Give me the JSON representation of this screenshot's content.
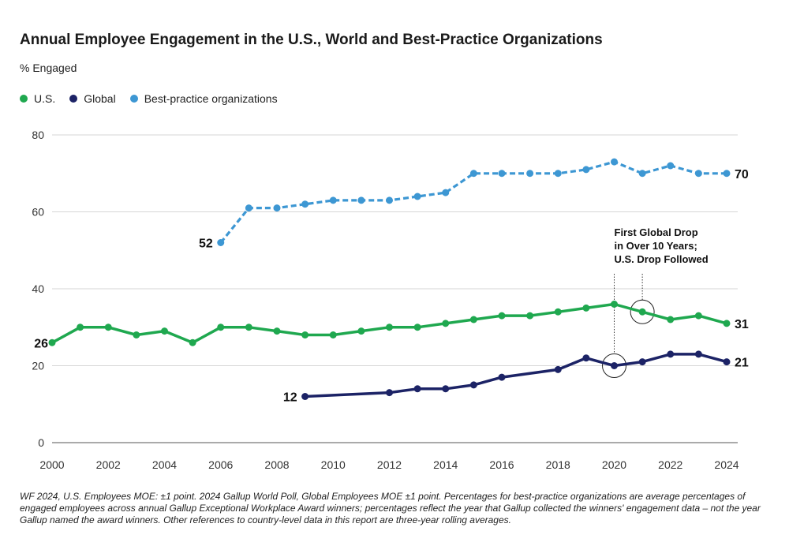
{
  "chart_data": {
    "type": "line",
    "title": "Annual Employee Engagement in the U.S., World and Best-Practice Organizations",
    "ylabel": "% Engaged",
    "xlabel": "",
    "ylim": [
      0,
      80
    ],
    "xlim": [
      2000,
      2024
    ],
    "y_ticks": [
      0,
      20,
      40,
      60,
      80
    ],
    "x_ticks": [
      2000,
      2002,
      2004,
      2006,
      2008,
      2010,
      2012,
      2014,
      2016,
      2018,
      2020,
      2022,
      2024
    ],
    "grid": "horizontal",
    "legend_position": "top-left",
    "series": [
      {
        "name": "U.S.",
        "color": "#1fa84f",
        "style": "solid",
        "x": [
          2000,
          2001,
          2002,
          2003,
          2004,
          2005,
          2006,
          2007,
          2008,
          2009,
          2010,
          2011,
          2012,
          2013,
          2014,
          2015,
          2016,
          2017,
          2018,
          2019,
          2020,
          2021,
          2022,
          2023,
          2024
        ],
        "values": [
          26,
          30,
          30,
          28,
          29,
          26,
          30,
          30,
          29,
          28,
          28,
          29,
          30,
          30,
          31,
          32,
          33,
          33,
          34,
          35,
          36,
          34,
          32,
          33,
          31
        ],
        "start_label": "26",
        "end_label": "31"
      },
      {
        "name": "Global",
        "color": "#1c2366",
        "style": "solid",
        "x": [
          2009,
          2012,
          2013,
          2014,
          2015,
          2016,
          2018,
          2019,
          2020,
          2021,
          2022,
          2023,
          2024
        ],
        "values": [
          12,
          13,
          14,
          14,
          15,
          17,
          19,
          22,
          20,
          21,
          23,
          23,
          21
        ],
        "start_label": "12",
        "end_label": "21"
      },
      {
        "name": "Best-practice organizations",
        "color": "#3d97d3",
        "style": "dashed",
        "x": [
          2006,
          2007,
          2008,
          2009,
          2010,
          2011,
          2012,
          2013,
          2014,
          2015,
          2016,
          2017,
          2018,
          2019,
          2020,
          2021,
          2022,
          2023,
          2024
        ],
        "values": [
          52,
          61,
          61,
          62,
          63,
          63,
          63,
          64,
          65,
          70,
          70,
          70,
          70,
          71,
          73,
          70,
          72,
          70,
          70
        ],
        "start_label": "52",
        "end_label": "70"
      }
    ],
    "annotation": {
      "lines": [
        "First Global Drop",
        "in Over 10 Years;",
        "U.S. Drop Followed"
      ],
      "circles": [
        {
          "series": "Global",
          "x": 2020,
          "y": 20
        },
        {
          "series": "U.S.",
          "x": 2021,
          "y": 34
        }
      ]
    }
  },
  "footnote": "WF 2024, U.S. Employees MOE: ±1 point. 2024 Gallup World Poll, Global Employees MOE ±1 point. Percentages for best-practice organizations are average percentages of engaged employees across annual Gallup Exceptional Workplace Award winners; percentages reflect the year that Gallup collected the winners' engagement data – not the year Gallup named the award winners. Other references to country-level data in this report are three-year rolling averages."
}
